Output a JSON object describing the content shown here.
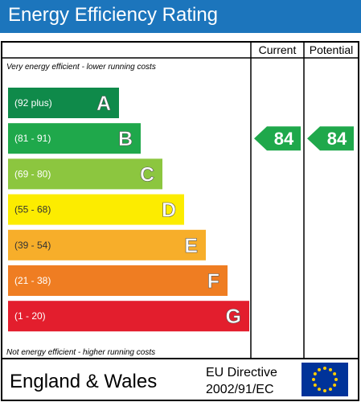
{
  "title": "Energy Efficiency Rating",
  "chart_data": {
    "type": "bar",
    "columns": [
      "Current",
      "Potential"
    ],
    "top_note": "Very energy efficient - lower running costs",
    "bottom_note": "Not energy efficient - higher running costs",
    "bands": [
      {
        "range": "(92 plus)",
        "letter": "A",
        "color": "#0f8a4a",
        "text_color": "#ffffff"
      },
      {
        "range": "(81 - 91)",
        "letter": "B",
        "color": "#1fa84b",
        "text_color": "#ffffff"
      },
      {
        "range": "(69 - 80)",
        "letter": "C",
        "color": "#8cc63f",
        "text_color": "#ffffff"
      },
      {
        "range": "(55 - 68)",
        "letter": "D",
        "color": "#fcec00",
        "text_color": "#333333"
      },
      {
        "range": "(39 - 54)",
        "letter": "E",
        "color": "#f7ae2a",
        "text_color": "#333333"
      },
      {
        "range": "(21 - 38)",
        "letter": "F",
        "color": "#ef7d22",
        "text_color": "#ffffff"
      },
      {
        "range": "(1 - 20)",
        "letter": "G",
        "color": "#e31e2d",
        "text_color": "#ffffff"
      }
    ],
    "current": {
      "value": 84,
      "band": "B",
      "color": "#1fa84b"
    },
    "potential": {
      "value": 84,
      "band": "B",
      "color": "#1fa84b"
    }
  },
  "footer": {
    "region": "England & Wales",
    "directive_line1": "EU Directive",
    "directive_line2": "2002/91/EC"
  },
  "colors": {
    "title_bar": "#1c75bc",
    "eu_flag": "#003399",
    "eu_star": "#ffcc00"
  }
}
